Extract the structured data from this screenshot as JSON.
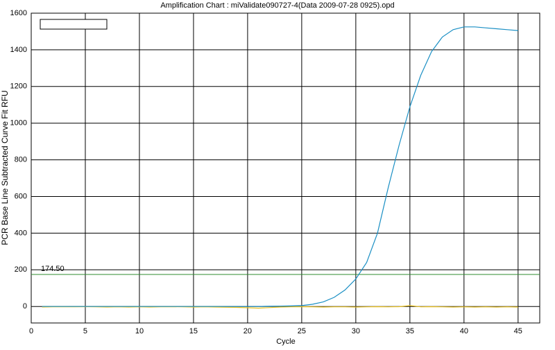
{
  "chart_data": {
    "type": "line",
    "title": "Amplification Chart : miValidate090727-4(Data 2009-07-28 0925).opd",
    "x_label": "Cycle",
    "y_label": "PCR Base Line Subtracted Curve Fit RFU",
    "x": [
      1,
      2,
      3,
      4,
      5,
      6,
      7,
      8,
      9,
      10,
      11,
      12,
      13,
      14,
      15,
      16,
      17,
      18,
      19,
      20,
      21,
      22,
      23,
      24,
      25,
      26,
      27,
      28,
      29,
      30,
      31,
      32,
      33,
      34,
      35,
      36,
      37,
      38,
      39,
      40,
      41,
      42,
      43,
      44,
      45
    ],
    "series": [
      {
        "color": "#1a8fc4",
        "values": [
          0,
          0,
          0,
          0,
          0,
          0,
          0,
          0,
          0,
          0,
          0,
          0,
          0,
          0,
          0,
          0,
          0,
          0,
          0,
          0,
          0,
          1,
          2,
          3,
          5,
          12,
          25,
          50,
          90,
          150,
          240,
          400,
          650,
          880,
          1090,
          1260,
          1390,
          1470,
          1510,
          1525,
          1525,
          1520,
          1515,
          1510,
          1505
        ]
      },
      {
        "color": "#e8c020",
        "values": [
          -3,
          -2,
          -1,
          -2,
          -1,
          -2,
          -3,
          -2,
          -3,
          -2,
          -3,
          -2,
          -1,
          -2,
          -3,
          -2,
          -3,
          -4,
          -5,
          -7,
          -9,
          -6,
          -3,
          -2,
          -1,
          -2,
          -3,
          -2,
          -2,
          -3,
          -2,
          -1,
          -2,
          -1,
          5,
          -2,
          -1,
          -2,
          -3,
          -2,
          -3,
          -2,
          -3,
          -2,
          -3
        ]
      }
    ],
    "threshold": {
      "value": 174.5,
      "label": "174.50",
      "color": "#2e8b2e"
    },
    "xlim": [
      0,
      47
    ],
    "ylim": [
      -90,
      1600
    ],
    "xticks": [
      0,
      5,
      10,
      15,
      20,
      25,
      30,
      35,
      40,
      45
    ],
    "yticks": [
      0,
      200,
      400,
      600,
      800,
      1000,
      1200,
      1400,
      1600
    ],
    "grid": true
  }
}
